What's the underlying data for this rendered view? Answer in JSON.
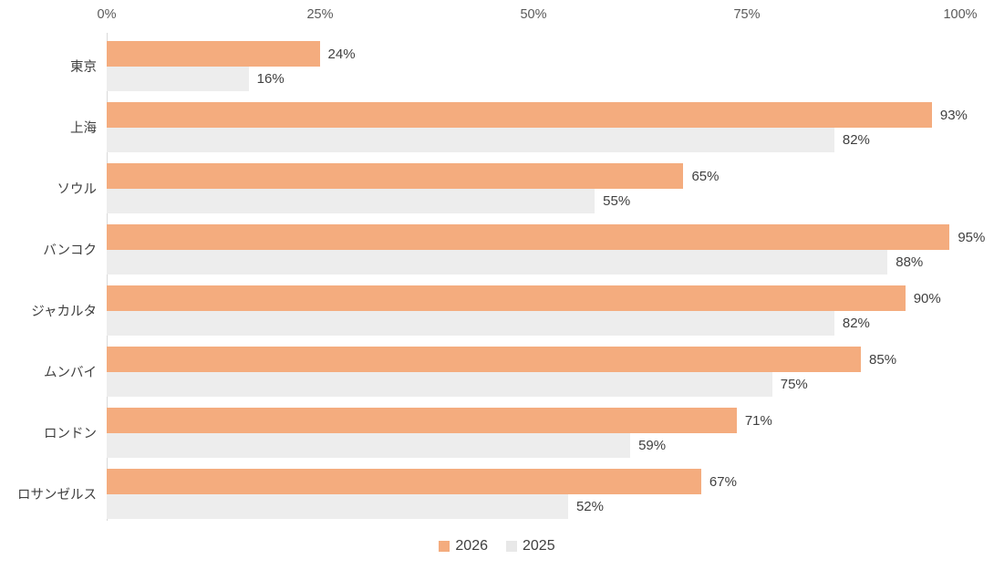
{
  "chart_data": {
    "type": "bar",
    "orientation": "horizontal",
    "title": "",
    "xlabel": "",
    "ylabel": "",
    "categories": [
      "東京",
      "上海",
      "ソウル",
      "バンコク",
      "ジャカルタ",
      "ムンバイ",
      "ロンドン",
      "ロサンゼルス"
    ],
    "series": [
      {
        "name": "2026",
        "color": "#F4AC7E",
        "values": [
          24,
          93,
          65,
          95,
          90,
          85,
          71,
          67
        ]
      },
      {
        "name": "2025",
        "color": "#EDEDED",
        "values": [
          16,
          82,
          55,
          88,
          82,
          75,
          59,
          52
        ]
      }
    ],
    "value_suffix": "%",
    "x_axis": {
      "position": "top",
      "min": 0,
      "max": 100,
      "ticks": [
        "0%",
        "25%",
        "50%",
        "75%",
        "100%"
      ]
    },
    "legend": {
      "position": "bottom",
      "entries": [
        {
          "label": "2026",
          "color": "#F4AC7E"
        },
        {
          "label": "2025",
          "color": "#E8E8E8"
        }
      ]
    },
    "grid": false
  },
  "colors": {
    "axis_line": "#d9d9d9",
    "tick_text": "#595959",
    "label_text": "#404040",
    "value_text": "#404040",
    "background": "#ffffff"
  }
}
